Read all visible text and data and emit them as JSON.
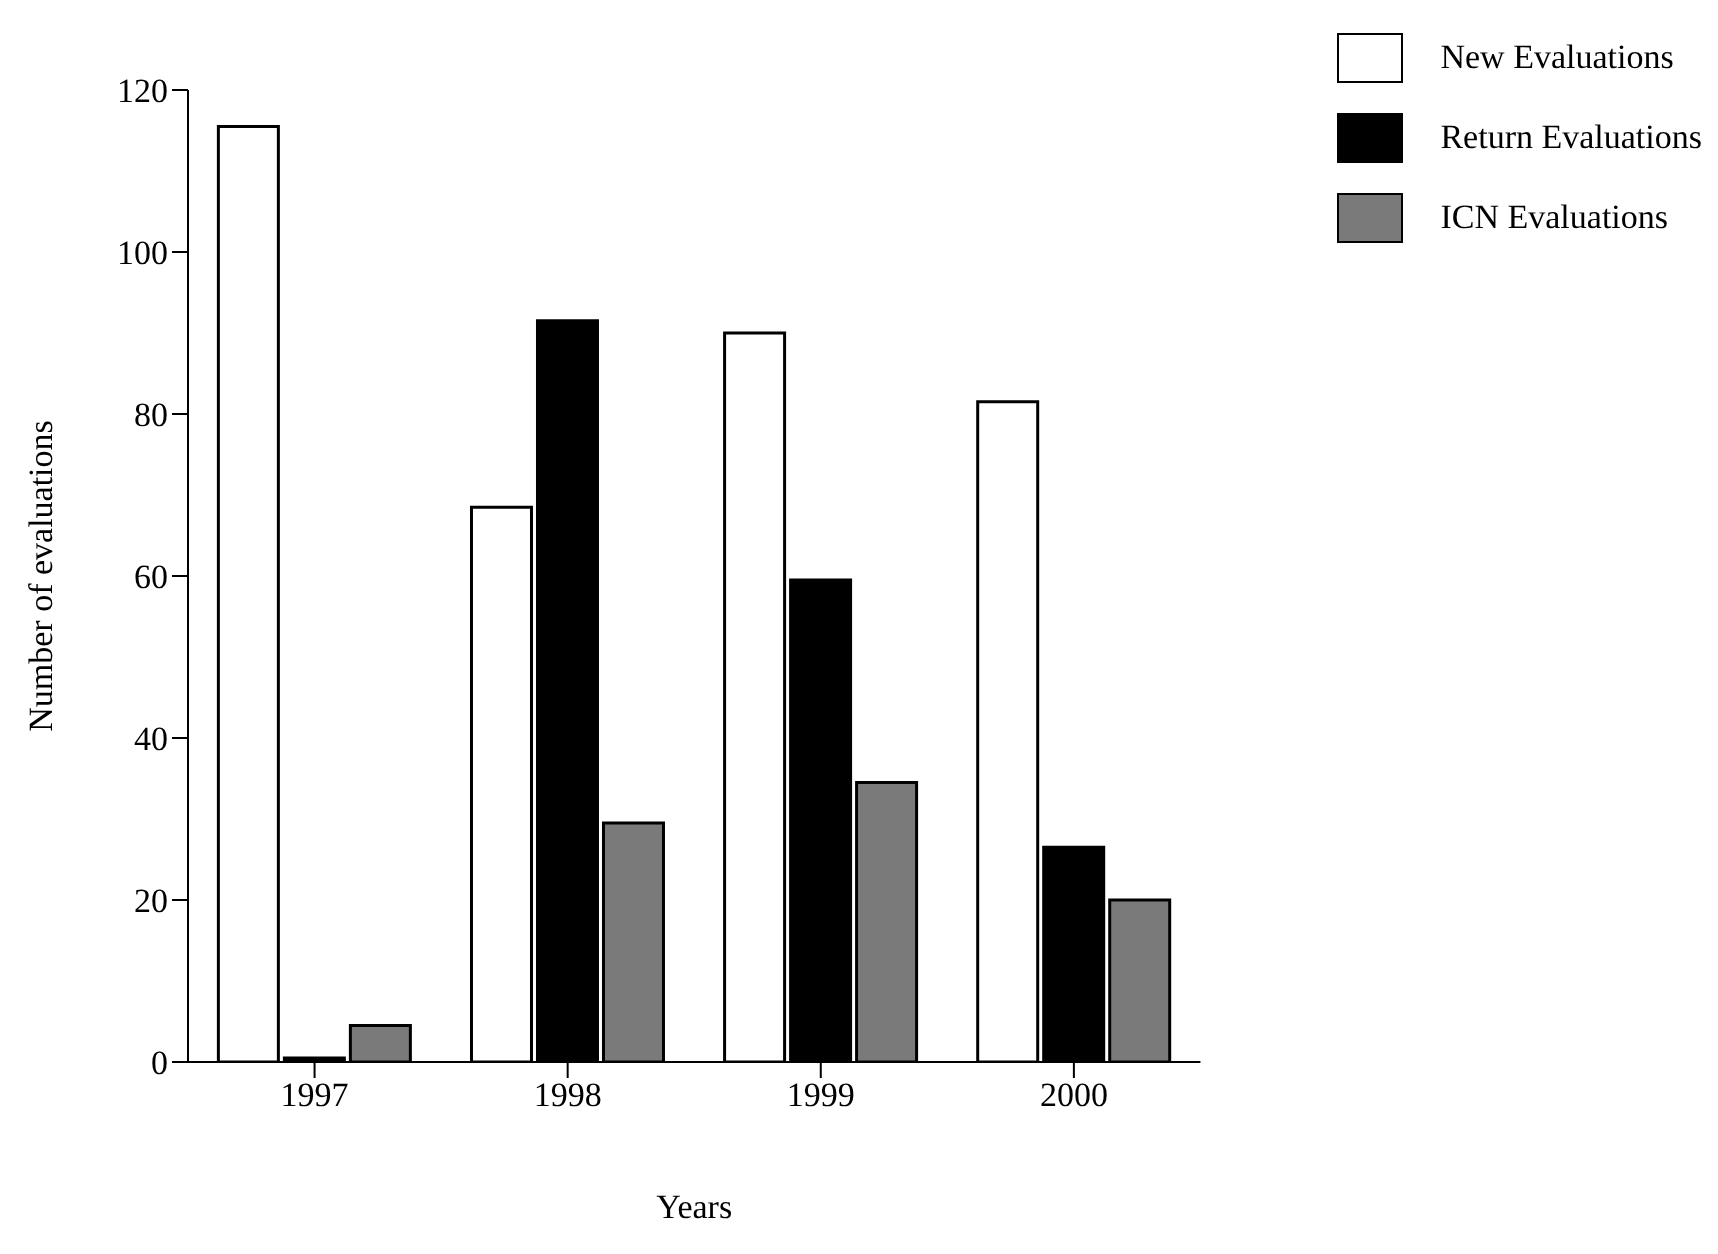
{
  "chart_data": {
    "type": "bar",
    "xlabel": "Years",
    "ylabel": "Number of evaluations",
    "categories": [
      "1997",
      "1998",
      "1999",
      "2000"
    ],
    "series": [
      {
        "name": "New Evaluations",
        "color": "#ffffff",
        "values": [
          115.5,
          68.5,
          90,
          81.5
        ]
      },
      {
        "name": "Return Evaluations",
        "color": "#000000",
        "values": [
          0.5,
          91.5,
          59.5,
          26.5
        ]
      },
      {
        "name": "ICN Evaluations",
        "color": "#7a7a7a",
        "values": [
          4.5,
          29.5,
          34.5,
          20
        ]
      }
    ],
    "ylim": [
      0,
      120
    ],
    "yticks": [
      0,
      20,
      40,
      60,
      80,
      100,
      120
    ],
    "grid": false,
    "legend": "top right"
  }
}
